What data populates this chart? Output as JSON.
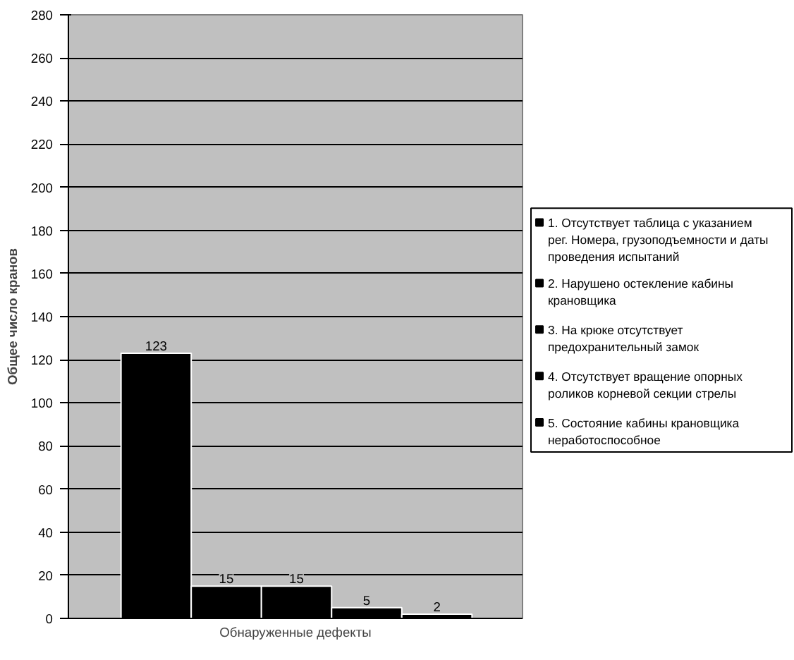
{
  "chart_data": {
    "type": "bar",
    "xlabel": "Обнаруженные дефекты",
    "ylabel": "Общее число кранов",
    "categories": [
      null
    ],
    "series": [
      {
        "name": "1. Отсутствует таблица с указанием рег. Номера, грузоподъемности и даты проведения испытаний",
        "color": "#000000",
        "values": [
          123
        ]
      },
      {
        "name": "2. Нарушено остекление кабины крановщика",
        "color": "#000000",
        "values": [
          15
        ]
      },
      {
        "name": "3. На крюке отсутствует предохранительный замок",
        "color": "#000000",
        "values": [
          15
        ]
      },
      {
        "name": "4. Отсутствует вращение опорных роликов корневой секции стрелы",
        "color": "#000000",
        "values": [
          5
        ]
      },
      {
        "name": "5. Состояние кабины крановщика неработоспособное",
        "color": "#000000",
        "values": [
          2
        ]
      }
    ],
    "ylim": [
      0,
      280
    ],
    "yticks": [
      0,
      20,
      40,
      60,
      80,
      100,
      120,
      140,
      160,
      180,
      200,
      220,
      240,
      260,
      280
    ],
    "grid": "y",
    "legend": "right",
    "data_labels": true
  }
}
